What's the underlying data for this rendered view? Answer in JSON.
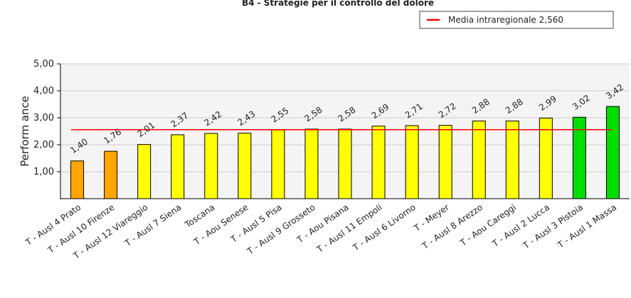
{
  "chart_data": {
    "type": "bar",
    "title": "B4 - Strategie per il controllo del dolore",
    "ylabel": "Perform ance",
    "xlabel": "",
    "ylim": [
      0,
      5
    ],
    "yticks": [
      "1,00",
      "2,00",
      "3,00",
      "4,00",
      "5,00"
    ],
    "grid": true,
    "legend_position": "top-right",
    "reference_line": {
      "label": "Media intraregionale 2,560",
      "value": 2.56,
      "color": "#ff0000"
    },
    "categories": [
      "T - Ausl 4 Prato",
      "T - Ausl 10 Firenze",
      "T - Ausl 12 Viareggio",
      "T - Ausl 7 Siena",
      "Toscana",
      "T - Aou Senese",
      "T - Ausl 5 Pisa",
      "T - Ausl 9 Grosseto",
      "T - Aou Pisana",
      "T - Ausl 11 Empoli",
      "T - Ausl 6 Livorno",
      "T - Meyer",
      "T - Ausl 8 Arezzo",
      "T - Aou Careggi",
      "T - Ausl 2 Lucca",
      "T - Ausl 3 Pistoia",
      "T - Ausl 1 Massa"
    ],
    "values": [
      1.4,
      1.76,
      2.01,
      2.37,
      2.42,
      2.43,
      2.55,
      2.58,
      2.58,
      2.69,
      2.71,
      2.72,
      2.88,
      2.88,
      2.99,
      3.02,
      3.42
    ],
    "value_labels": [
      "1,40",
      "1,76",
      "2,01",
      "2,37",
      "2,42",
      "2,43",
      "2,55",
      "2,58",
      "2,58",
      "2,69",
      "2,71",
      "2,72",
      "2,88",
      "2,88",
      "2,99",
      "3,02",
      "3,42"
    ],
    "bar_colors": [
      "#ffa500",
      "#ffa500",
      "#ffff00",
      "#ffff00",
      "#ffff00",
      "#ffff00",
      "#ffff00",
      "#ffff00",
      "#ffff00",
      "#ffff00",
      "#ffff00",
      "#ffff00",
      "#ffff00",
      "#ffff00",
      "#ffff00",
      "#00dd00",
      "#00dd00"
    ],
    "plot_background": "#f4f4f4"
  }
}
